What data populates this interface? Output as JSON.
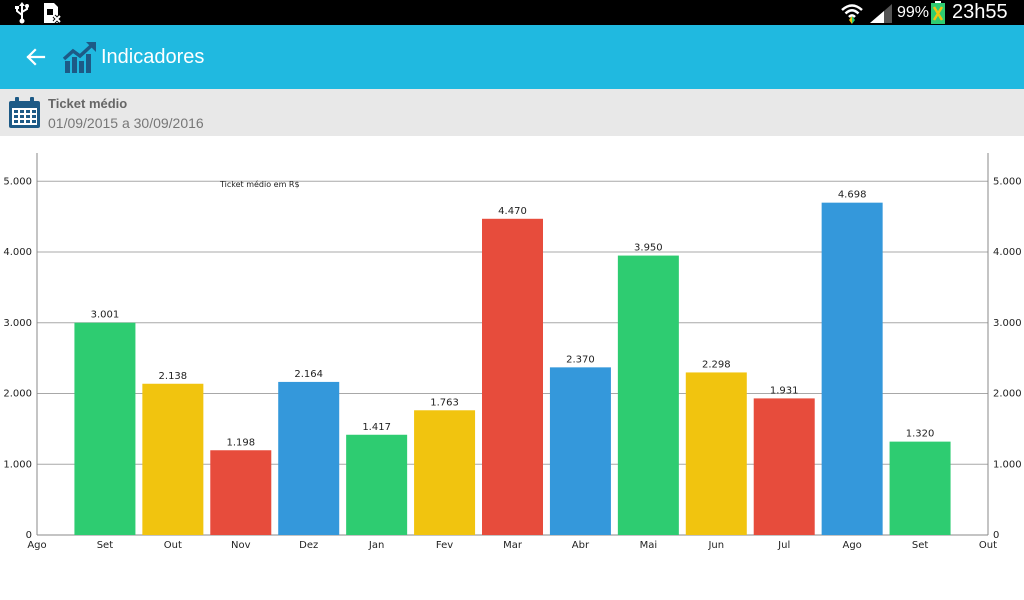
{
  "status_bar": {
    "battery_percent": "99%",
    "clock": "23h55",
    "icons": [
      "usb-icon",
      "sim-card-icon",
      "wifi-icon",
      "signal-icon",
      "battery-charging-icon"
    ]
  },
  "app_bar": {
    "title": "Indicadores",
    "background": "#20b9e0",
    "icons": [
      "back-arrow-icon",
      "trending-up-chart-icon"
    ]
  },
  "filter": {
    "title": "Ticket médio",
    "date_range": "01/09/2015 a 30/09/2016",
    "icon": "calendar-icon"
  },
  "chart_data": {
    "type": "bar",
    "title": "Ticket médio em R$",
    "x_ticks": [
      "Ago",
      "Set",
      "Out",
      "Nov",
      "Dez",
      "Jan",
      "Fev",
      "Mar",
      "Abr",
      "Mai",
      "Jun",
      "Jul",
      "Ago",
      "Set",
      "Out"
    ],
    "categories": [
      "Set",
      "Out",
      "Nov",
      "Dez",
      "Jan",
      "Fev",
      "Mar",
      "Abr",
      "Mai",
      "Jun",
      "Jul",
      "Ago",
      "Set"
    ],
    "values": [
      3001,
      2138,
      1198,
      2164,
      1417,
      1763,
      4470,
      2370,
      3950,
      2298,
      1931,
      4698,
      1320
    ],
    "value_labels": [
      "3.001",
      "2.138",
      "1.198",
      "2.164",
      "1.417",
      "1.763",
      "4.470",
      "2.370",
      "3.950",
      "2.298",
      "1.931",
      "4.698",
      "1.320"
    ],
    "colors": [
      "#2ecc71",
      "#f1c40f",
      "#e74c3c",
      "#3498db",
      "#2ecc71",
      "#f1c40f",
      "#e74c3c",
      "#3498db",
      "#2ecc71",
      "#f1c40f",
      "#e74c3c",
      "#3498db",
      "#2ecc71"
    ],
    "y_ticks": [
      0,
      1000,
      2000,
      3000,
      4000,
      5000
    ],
    "y_tick_labels": [
      "0",
      "1.000",
      "2.000",
      "3.000",
      "4.000",
      "5.000"
    ],
    "ylim": [
      0,
      5400
    ],
    "axes": "left-and-right",
    "grid": true
  }
}
